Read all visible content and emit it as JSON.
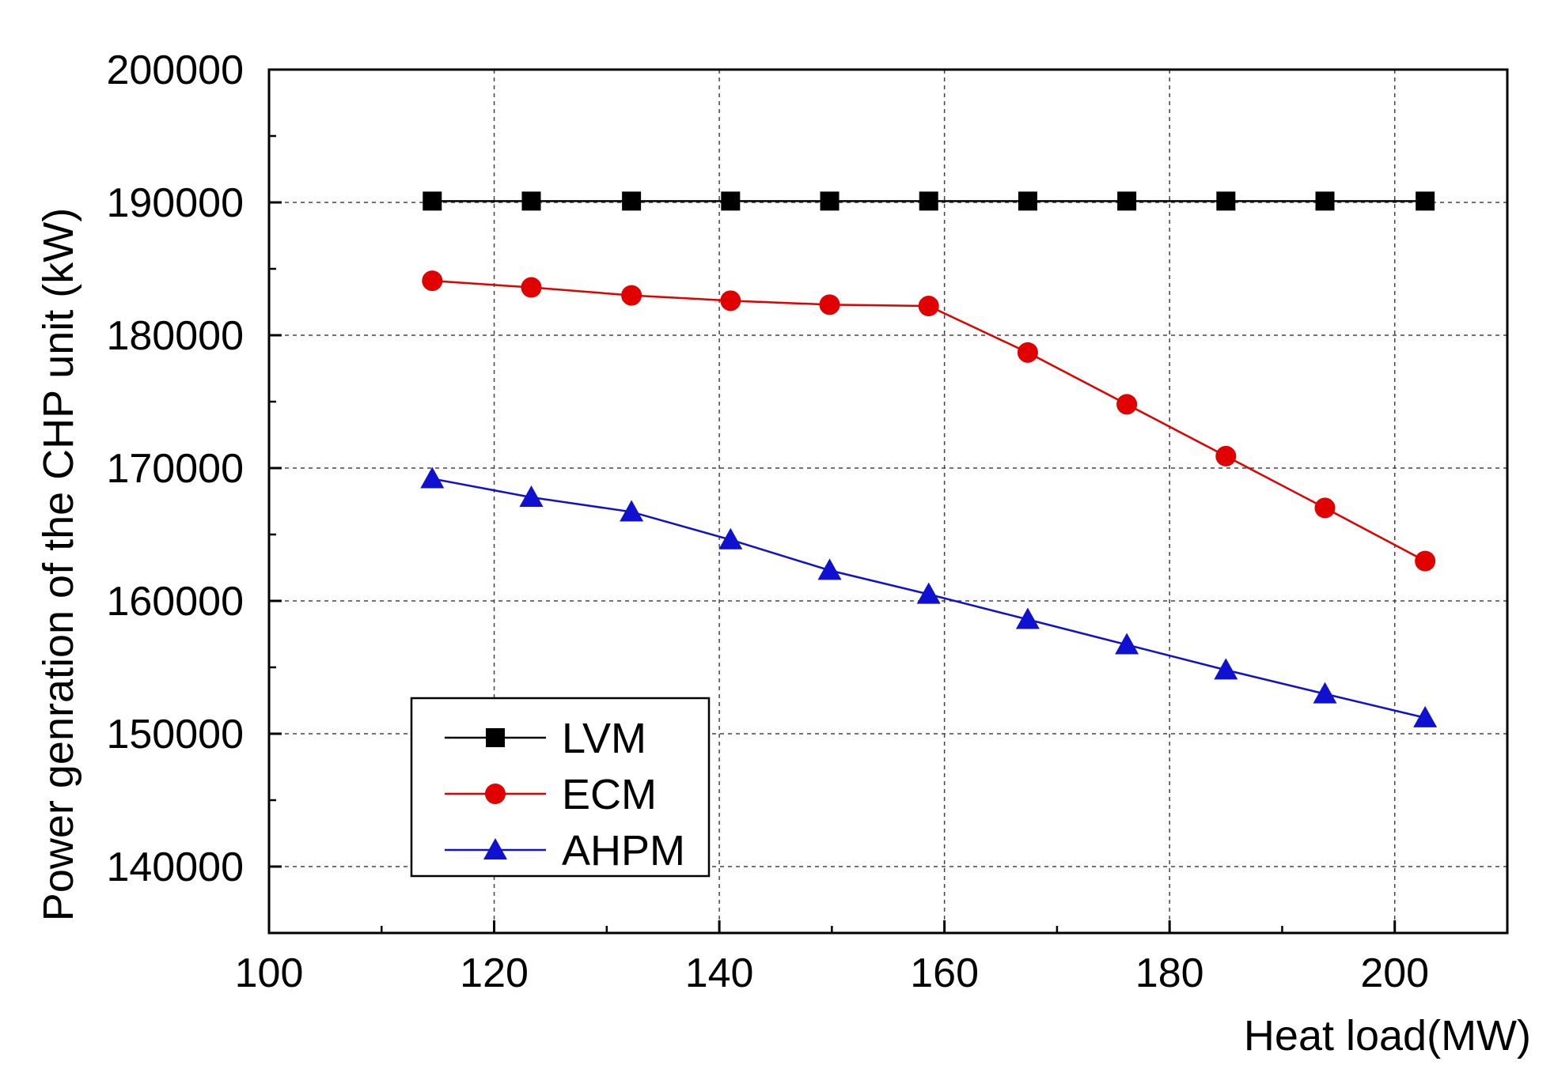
{
  "chart_data": {
    "type": "line",
    "title": "",
    "xlabel": "Heat load(MW)",
    "ylabel": "Power genration of the CHP unit (kW)",
    "xlim": [
      100,
      210
    ],
    "ylim": [
      135000,
      200000
    ],
    "xticks": [
      100,
      120,
      140,
      160,
      180,
      200
    ],
    "yticks": [
      140000,
      150000,
      160000,
      170000,
      180000,
      190000,
      200000
    ],
    "xtick_labels": [
      "100",
      "120",
      "140",
      "160",
      "180",
      "200"
    ],
    "ytick_labels": [
      "140000",
      "150000",
      "160000",
      "170000",
      "180000",
      "190000",
      "200000"
    ],
    "grid": true,
    "legend_position": "bottom-left",
    "x": [
      114.5,
      123.3,
      132.2,
      141.0,
      149.8,
      158.6,
      167.4,
      176.2,
      185.0,
      193.8,
      202.7
    ],
    "series": [
      {
        "name": "LVM",
        "color": "#000000",
        "marker": "square",
        "values": [
          190100,
          190100,
          190100,
          190100,
          190100,
          190100,
          190100,
          190100,
          190100,
          190100,
          190100
        ]
      },
      {
        "name": "ECM",
        "color": "#e00000",
        "marker": "circle",
        "values": [
          184100,
          183600,
          183000,
          182600,
          182300,
          182200,
          178700,
          174800,
          170900,
          167000,
          163000
        ]
      },
      {
        "name": "AHPM",
        "color": "#1010d0",
        "marker": "triangle",
        "values": [
          169200,
          167800,
          166700,
          164600,
          162300,
          160500,
          158600,
          156700,
          154800,
          153000,
          151200
        ]
      }
    ]
  }
}
